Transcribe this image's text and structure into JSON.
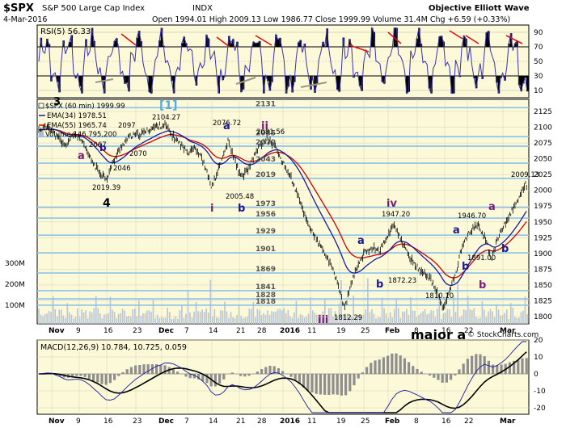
{
  "header": {
    "symbol": "$SPX",
    "name": "S&P 500 Large Cap Index",
    "exchange": "INDX",
    "source": "Objective Elliott Wave",
    "date": "4-Mar-2016",
    "ohlc_text": "Open 1994.01  High 2009.13  Low 1986.77  Close 1999.99  Volume 31.4M  Chg +6.59 (+0.33%)",
    "watermark": "© StockCharts.com"
  },
  "rsi": {
    "label": "RSI(5) 56.33",
    "ticks": [
      "90",
      "70",
      "50",
      "30",
      "10"
    ]
  },
  "price": {
    "legend": [
      {
        "text": "$SPX (60 min) 1999.99",
        "color": "#000000"
      },
      {
        "text": "EMA(34) 1978.51",
        "color": "#1a1aa0"
      },
      {
        "text": "EMA(55) 1965.74",
        "color": "#cc0000"
      },
      {
        "text": "Volume 146,795,200",
        "color": "#7a8aa8"
      }
    ],
    "y_ticks": [
      "2125",
      "2100",
      "2075",
      "2050",
      "2025",
      "2000",
      "1975",
      "1950",
      "1925",
      "1900",
      "1875",
      "1850",
      "1825",
      "1800"
    ],
    "volume_ticks": [
      "300M",
      "200M",
      "100M"
    ],
    "levels": [
      "2131",
      "2085",
      "2070",
      "2043",
      "2019",
      "1973",
      "1956",
      "1929",
      "1901",
      "1869",
      "1841",
      "1828",
      "1818"
    ],
    "swing_labels": [
      "2104.27",
      "2097",
      "2067",
      "2070",
      "2046",
      "2019.39",
      "2076.72",
      "2005.48",
      "2081.56",
      "1947.20",
      "1812.29",
      "1872.23",
      "1810.10",
      "1946.70",
      "1891.00",
      "2009.13"
    ],
    "wave_labels": {
      "w3": "3",
      "w1": "[1]",
      "a1": "a",
      "b1": "b",
      "w4": "4",
      "i": "i",
      "a2": "a",
      "b2": "b",
      "ii": "ii",
      "iii": "iii",
      "iv": "iv",
      "a3": "a",
      "b3": "b",
      "major": "major a",
      "a4": "a",
      "a5": "a",
      "b4": "b",
      "b5": "b",
      "b6": "b"
    }
  },
  "macd": {
    "label": "MACD(12,26,9) 10.784, 10.725, 0.059",
    "ticks": [
      "20",
      "10",
      "0",
      "-10",
      "-20"
    ]
  },
  "x_axis": [
    "Nov",
    "9",
    "16",
    "23",
    "Dec",
    "7",
    "14",
    "21",
    "28",
    "2016",
    "11",
    "19",
    "25",
    "Feb",
    "8",
    "16",
    "22",
    "Mar"
  ],
  "colors": {
    "panel_bg": "#fbf9d8",
    "price_line": "#000000",
    "ema34": "#1a1aa0",
    "ema55": "#cc0000",
    "level_line": "#8cc3ec",
    "rsi_line": "#3a31b0",
    "macd_hist": "#8e8e8e",
    "wave_purple": "#7a1a7a",
    "wave_navy": "#1a1a8c",
    "wave_cyan": "#5aa8e0"
  },
  "chart_data": {
    "type": "line",
    "title": "$SPX S&P 500 Large Cap Index INDX",
    "x": [
      "Nov",
      "9",
      "16",
      "23",
      "Dec",
      "7",
      "14",
      "21",
      "28",
      "2016",
      "11",
      "19",
      "25",
      "Feb",
      "8",
      "16",
      "22",
      "Mar"
    ],
    "ylim": [
      1790,
      2140
    ],
    "series": [
      {
        "name": "$SPX (60 min)",
        "values": [
          2085,
          2060,
          2025,
          2085,
          2095,
          2070,
          2030,
          2020,
          2070,
          2040,
          1930,
          1880,
          1905,
          1875,
          1825,
          1930,
          1945,
          2000
        ]
      },
      {
        "name": "EMA(34)",
        "values": [
          2080,
          2070,
          2055,
          2075,
          2090,
          2080,
          2050,
          2035,
          2050,
          2050,
          1975,
          1910,
          1905,
          1890,
          1860,
          1895,
          1930,
          1978.51
        ]
      },
      {
        "name": "EMA(55)",
        "values": [
          2075,
          2068,
          2058,
          2070,
          2082,
          2080,
          2058,
          2040,
          2048,
          2055,
          1995,
          1925,
          1905,
          1895,
          1870,
          1885,
          1920,
          1965.74
        ]
      }
    ]
  }
}
